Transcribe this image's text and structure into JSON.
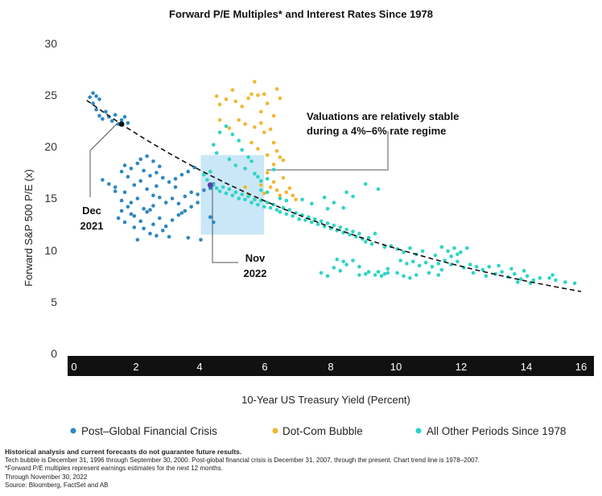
{
  "chart_data": {
    "type": "scatter",
    "title": "Forward P/E Multiples* and Interest Rates Since 1978",
    "xlabel": "10-Year US Treasury Yield (Percent)",
    "ylabel": "Forward S&P 500 P/E (x)",
    "xlim": [
      0,
      16
    ],
    "ylim": [
      0,
      30
    ],
    "xticks": [
      "0",
      "2",
      "4",
      "6",
      "8",
      "10",
      "12",
      "14",
      "16"
    ],
    "yticks": [
      "0",
      "5",
      "10",
      "15",
      "20",
      "25",
      "30"
    ],
    "grid": false,
    "legend_position": "bottom",
    "series": [
      {
        "name": "Post–Global Financial Crisis",
        "color": "#2e86c1",
        "points": [
          [
            0.5,
            24.8
          ],
          [
            0.6,
            24.2
          ],
          [
            0.7,
            23.6
          ],
          [
            0.8,
            23.0
          ],
          [
            0.9,
            22.7
          ],
          [
            1.0,
            23.4
          ],
          [
            1.1,
            22.9
          ],
          [
            1.2,
            22.5
          ],
          [
            1.3,
            23.1
          ],
          [
            1.4,
            22.2
          ],
          [
            1.5,
            22.6
          ],
          [
            1.6,
            22.9
          ],
          [
            1.7,
            22.3
          ],
          [
            0.6,
            25.2
          ],
          [
            0.8,
            24.6
          ],
          [
            0.7,
            24.9
          ],
          [
            0.9,
            16.8
          ],
          [
            1.1,
            16.4
          ],
          [
            1.3,
            15.7
          ],
          [
            1.5,
            14.8
          ],
          [
            1.7,
            14.2
          ],
          [
            1.9,
            13.3
          ],
          [
            2.1,
            12.8
          ],
          [
            2.3,
            13.7
          ],
          [
            2.5,
            12.5
          ],
          [
            2.7,
            13.1
          ],
          [
            2.9,
            12.3
          ],
          [
            3.1,
            12.9
          ],
          [
            3.3,
            13.4
          ],
          [
            3.5,
            13.8
          ],
          [
            3.7,
            14.2
          ],
          [
            3.9,
            14.6
          ],
          [
            2.2,
            12.1
          ],
          [
            2.4,
            11.6
          ],
          [
            2.6,
            11.4
          ],
          [
            2.8,
            11.9
          ],
          [
            3.0,
            11.3
          ],
          [
            2.0,
            11.0
          ],
          [
            1.4,
            13.1
          ],
          [
            1.6,
            12.7
          ],
          [
            1.8,
            13.5
          ],
          [
            1.5,
            17.6
          ],
          [
            1.7,
            17.1
          ],
          [
            1.9,
            16.3
          ],
          [
            2.1,
            16.7
          ],
          [
            2.3,
            15.9
          ],
          [
            2.5,
            15.3
          ],
          [
            2.7,
            15.1
          ],
          [
            2.9,
            14.6
          ],
          [
            3.1,
            15.0
          ],
          [
            3.3,
            14.5
          ],
          [
            3.5,
            15.2
          ],
          [
            3.7,
            15.6
          ],
          [
            3.9,
            15.4
          ],
          [
            4.1,
            15.8
          ],
          [
            4.3,
            16.0
          ],
          [
            4.4,
            16.4
          ],
          [
            1.6,
            18.2
          ],
          [
            1.8,
            17.9
          ],
          [
            2.0,
            18.4
          ],
          [
            2.2,
            17.7
          ],
          [
            2.4,
            17.2
          ],
          [
            2.6,
            17.5
          ],
          [
            2.8,
            17.0
          ],
          [
            3.0,
            16.6
          ],
          [
            3.2,
            16.9
          ],
          [
            3.4,
            17.3
          ],
          [
            3.6,
            17.6
          ],
          [
            3.8,
            18.0
          ],
          [
            2.1,
            18.8
          ],
          [
            2.3,
            19.1
          ],
          [
            2.5,
            18.6
          ],
          [
            2.7,
            18.1
          ],
          [
            1.5,
            13.8
          ],
          [
            1.9,
            12.2
          ],
          [
            2.5,
            14.3
          ],
          [
            3.6,
            11.2
          ],
          [
            4.0,
            11.0
          ],
          [
            4.3,
            13.2
          ],
          [
            4.4,
            12.7
          ],
          [
            1.3,
            16.1
          ],
          [
            1.6,
            15.6
          ],
          [
            2.0,
            15.0
          ],
          [
            2.2,
            14.0
          ],
          [
            2.6,
            16.2
          ],
          [
            3.2,
            16.1
          ],
          [
            3.4,
            13.6
          ],
          [
            1.8,
            14.6
          ],
          [
            2.4,
            13.9
          ]
        ]
      },
      {
        "name": "Dot-Com Bubble",
        "color": "#f2b632",
        "points": [
          [
            4.5,
            24.9
          ],
          [
            4.6,
            24.1
          ],
          [
            4.8,
            24.6
          ],
          [
            5.0,
            25.5
          ],
          [
            5.1,
            24.4
          ],
          [
            5.3,
            23.9
          ],
          [
            5.5,
            24.7
          ],
          [
            5.6,
            25.1
          ],
          [
            5.7,
            26.3
          ],
          [
            5.8,
            25.0
          ],
          [
            5.9,
            23.4
          ],
          [
            6.0,
            25.1
          ],
          [
            6.1,
            24.2
          ],
          [
            6.3,
            23.0
          ],
          [
            6.4,
            25.6
          ],
          [
            6.5,
            24.7
          ],
          [
            4.6,
            22.6
          ],
          [
            4.9,
            21.8
          ],
          [
            5.2,
            22.6
          ],
          [
            5.4,
            22.2
          ],
          [
            5.7,
            21.9
          ],
          [
            5.9,
            22.3
          ],
          [
            6.0,
            21.4
          ],
          [
            6.2,
            21.7
          ],
          [
            6.3,
            20.4
          ],
          [
            6.4,
            19.6
          ],
          [
            6.5,
            19.0
          ],
          [
            6.6,
            18.7
          ],
          [
            5.6,
            20.4
          ],
          [
            5.8,
            19.8
          ],
          [
            6.1,
            19.2
          ],
          [
            6.3,
            18.3
          ],
          [
            6.1,
            17.5
          ],
          [
            6.3,
            16.6
          ],
          [
            6.4,
            15.8
          ],
          [
            6.5,
            15.3
          ],
          [
            6.7,
            15.6
          ],
          [
            6.8,
            16.0
          ],
          [
            6.6,
            17.0
          ],
          [
            6.9,
            15.3
          ],
          [
            7.0,
            14.9
          ],
          [
            6.2,
            16.1
          ],
          [
            5.9,
            16.3
          ],
          [
            6.0,
            15.5
          ],
          [
            5.4,
            16.1
          ],
          [
            5.5,
            15.4
          ]
        ]
      },
      {
        "name": "All Other Periods Since 1978",
        "color": "#2dd4c5",
        "points": [
          [
            4.1,
            17.3
          ],
          [
            4.2,
            16.8
          ],
          [
            4.3,
            17.6
          ],
          [
            4.4,
            16.3
          ],
          [
            4.5,
            16.0
          ],
          [
            4.6,
            15.7
          ],
          [
            4.7,
            16.1
          ],
          [
            4.8,
            15.5
          ],
          [
            4.9,
            15.9
          ],
          [
            5.0,
            15.3
          ],
          [
            5.1,
            15.6
          ],
          [
            5.2,
            15.0
          ],
          [
            5.3,
            15.4
          ],
          [
            5.4,
            14.9
          ],
          [
            5.5,
            15.2
          ],
          [
            5.6,
            14.6
          ],
          [
            5.7,
            14.9
          ],
          [
            5.8,
            14.4
          ],
          [
            5.9,
            14.8
          ],
          [
            6.0,
            14.2
          ],
          [
            6.1,
            14.6
          ],
          [
            6.2,
            14.1
          ],
          [
            6.3,
            14.4
          ],
          [
            6.4,
            13.9
          ],
          [
            6.5,
            13.7
          ],
          [
            6.6,
            14.1
          ],
          [
            6.7,
            13.5
          ],
          [
            6.8,
            13.9
          ],
          [
            6.9,
            13.3
          ],
          [
            7.0,
            13.6
          ],
          [
            7.1,
            13.0
          ],
          [
            7.2,
            13.4
          ],
          [
            7.3,
            12.9
          ],
          [
            7.4,
            13.2
          ],
          [
            7.5,
            12.7
          ],
          [
            7.6,
            13.0
          ],
          [
            7.7,
            12.5
          ],
          [
            7.8,
            12.8
          ],
          [
            7.9,
            12.3
          ],
          [
            8.0,
            12.6
          ],
          [
            8.1,
            12.1
          ],
          [
            8.2,
            12.4
          ],
          [
            8.3,
            11.9
          ],
          [
            8.4,
            12.2
          ],
          [
            8.5,
            11.7
          ],
          [
            8.6,
            12.0
          ],
          [
            8.7,
            11.5
          ],
          [
            8.8,
            11.8
          ],
          [
            8.9,
            11.3
          ],
          [
            9.0,
            11.6
          ],
          [
            9.1,
            11.1
          ],
          [
            9.2,
            10.8
          ],
          [
            9.3,
            11.2
          ],
          [
            9.4,
            10.6
          ],
          [
            4.4,
            20.2
          ],
          [
            4.6,
            21.4
          ],
          [
            4.8,
            22.0
          ],
          [
            5.0,
            21.2
          ],
          [
            5.2,
            20.6
          ],
          [
            5.3,
            19.7
          ],
          [
            5.5,
            19.0
          ],
          [
            5.6,
            18.6
          ],
          [
            5.4,
            17.9
          ],
          [
            5.7,
            17.4
          ],
          [
            5.8,
            17.1
          ],
          [
            5.9,
            16.7
          ],
          [
            6.1,
            16.9
          ],
          [
            6.3,
            17.8
          ],
          [
            4.9,
            18.8
          ],
          [
            5.1,
            18.2
          ],
          [
            4.5,
            19.4
          ],
          [
            5.9,
            15.8
          ],
          [
            6.1,
            15.6
          ],
          [
            6.5,
            15.0
          ],
          [
            6.7,
            14.8
          ],
          [
            7.2,
            14.9
          ],
          [
            7.5,
            14.5
          ],
          [
            8.2,
            14.6
          ],
          [
            8.5,
            14.1
          ],
          [
            8.8,
            15.2
          ],
          [
            9.2,
            16.4
          ],
          [
            8.6,
            15.6
          ],
          [
            7.9,
            15.1
          ],
          [
            9.6,
            15.9
          ],
          [
            8.0,
            14.0
          ],
          [
            7.8,
            7.8
          ],
          [
            8.0,
            7.5
          ],
          [
            8.2,
            8.3
          ],
          [
            8.4,
            8.0
          ],
          [
            8.5,
            8.9
          ],
          [
            8.6,
            8.6
          ],
          [
            8.8,
            9.0
          ],
          [
            9.0,
            8.4
          ],
          [
            9.2,
            7.7
          ],
          [
            9.3,
            7.9
          ],
          [
            9.5,
            7.6
          ],
          [
            9.6,
            7.9
          ],
          [
            9.7,
            7.5
          ],
          [
            9.8,
            7.7
          ],
          [
            9.9,
            7.8
          ],
          [
            9.0,
            7.6
          ],
          [
            8.3,
            9.1
          ],
          [
            10.0,
            10.4
          ],
          [
            10.2,
            10.1
          ],
          [
            10.4,
            9.8
          ],
          [
            10.6,
            10.2
          ],
          [
            10.8,
            9.6
          ],
          [
            11.0,
            9.9
          ],
          [
            10.3,
            9.0
          ],
          [
            10.5,
            8.7
          ],
          [
            10.7,
            8.9
          ],
          [
            10.9,
            8.5
          ],
          [
            11.1,
            8.8
          ],
          [
            11.3,
            8.4
          ],
          [
            11.5,
            8.7
          ],
          [
            11.7,
            9.0
          ],
          [
            11.9,
            8.6
          ],
          [
            12.1,
            8.9
          ],
          [
            12.3,
            8.3
          ],
          [
            12.5,
            8.6
          ],
          [
            11.6,
            10.3
          ],
          [
            11.8,
            9.9
          ],
          [
            12.0,
            10.2
          ],
          [
            12.2,
            9.8
          ],
          [
            12.4,
            10.2
          ],
          [
            11.9,
            9.4
          ],
          [
            12.1,
            9.6
          ],
          [
            10.4,
            7.5
          ],
          [
            10.6,
            7.3
          ],
          [
            10.8,
            7.6
          ],
          [
            10.2,
            7.8
          ],
          [
            11.4,
            9.5
          ],
          [
            11.2,
            7.8
          ],
          [
            11.5,
            7.6
          ],
          [
            11.6,
            8.1
          ],
          [
            12.7,
            8.4
          ],
          [
            12.9,
            8.1
          ],
          [
            13.1,
            8.4
          ],
          [
            13.3,
            7.7
          ],
          [
            13.5,
            7.9
          ],
          [
            13.7,
            7.4
          ],
          [
            13.9,
            7.7
          ],
          [
            14.1,
            7.2
          ],
          [
            14.3,
            7.5
          ],
          [
            14.5,
            7.1
          ],
          [
            14.7,
            7.3
          ],
          [
            15.0,
            7.3
          ],
          [
            15.2,
            7.1
          ],
          [
            15.5,
            6.9
          ],
          [
            15.8,
            6.8
          ],
          [
            13.0,
            7.5
          ],
          [
            13.4,
            8.5
          ],
          [
            13.8,
            8.2
          ],
          [
            14.2,
            8.0
          ],
          [
            14.4,
            6.8
          ],
          [
            12.6,
            7.8
          ],
          [
            14.0,
            6.9
          ],
          [
            15.1,
            7.6
          ],
          [
            9.9,
            8.2
          ],
          [
            9.5,
            11.6
          ],
          [
            9.8,
            10.3
          ]
        ]
      }
    ],
    "trend_line": {
      "style": "dashed",
      "color": "#111111",
      "x": [
        0.4,
        16.0
      ],
      "y": [
        24.5,
        6.0
      ]
    },
    "highlight_box": {
      "x": [
        4.0,
        6.0
      ],
      "y": [
        11.5,
        19.2
      ],
      "color": "#bfe3f5"
    },
    "annotations": [
      {
        "text": [
          "Valuations are relatively stable",
          "during a 4%–6% rate regime"
        ]
      },
      {
        "text": [
          "Dec",
          "2021"
        ],
        "point": [
          1.5,
          22.2
        ],
        "color": "#111111"
      },
      {
        "text": [
          "Nov",
          "2022"
        ],
        "point": [
          4.3,
          16.3
        ],
        "color": "#5b3fa8"
      }
    ]
  },
  "footer": {
    "lines": [
      "Historical analysis and current forecasts do not guarantee future results.",
      "Tech bubble is December 31, 1996 through September 30, 2000. Post-global financial crisis is December 31, 2007, through the present. Chart trend line is 1978–2007.",
      "*Forward P/E multiples represent earnings estimates for the next 12 months.",
      "Through November 30, 2022",
      "Source: Bloomberg, FactSet and AB"
    ]
  }
}
